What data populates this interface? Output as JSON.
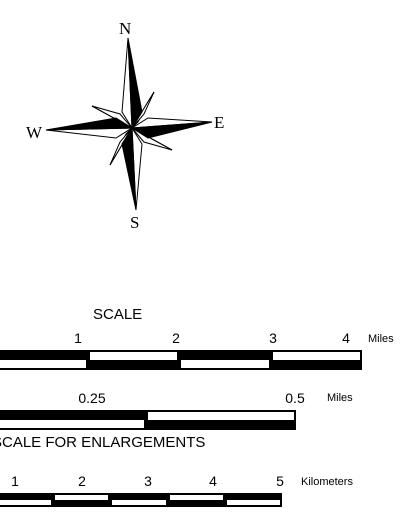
{
  "compass": {
    "north": "N",
    "east": "E",
    "south": "S",
    "west": "W"
  },
  "scale": {
    "title": "SCALE",
    "miles_bar": {
      "ticks": [
        "1",
        "2",
        "3",
        "4"
      ],
      "unit": "Miles",
      "segments": 4
    },
    "enlargement_title": "SCALE FOR ENLARGEMENTS",
    "enlarged_miles_bar": {
      "ticks": [
        "0.25",
        "0.5"
      ],
      "unit": "Miles",
      "segments": 2
    },
    "kilometers_bar": {
      "ticks": [
        "1",
        "2",
        "3",
        "4",
        "5"
      ],
      "unit": "Kilometers",
      "segments": 5
    }
  },
  "colors": {
    "ink": "#000000",
    "paper": "#ffffff"
  }
}
